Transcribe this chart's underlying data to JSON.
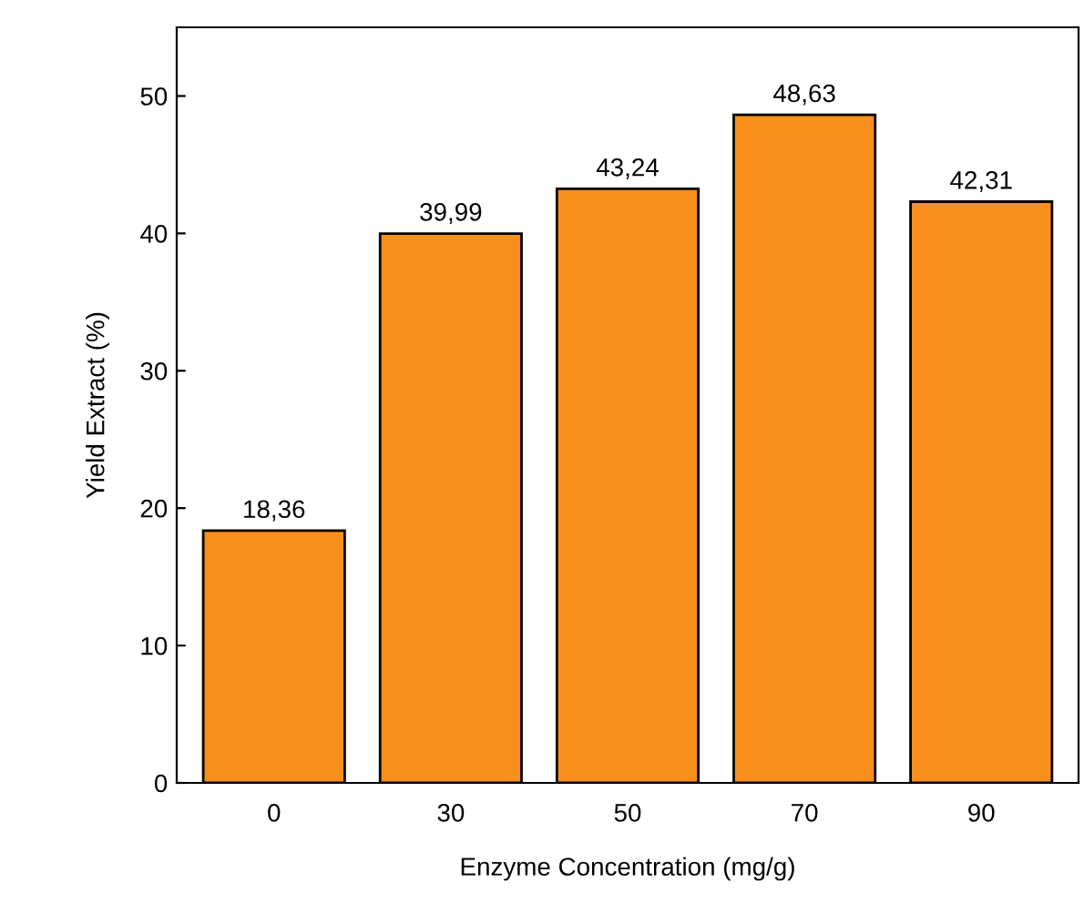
{
  "chart_data": {
    "type": "bar",
    "xlabel": "Enzyme Concentration (mg/g)",
    "ylabel": "Yield Extract (%)",
    "categories": [
      "0",
      "30",
      "50",
      "70",
      "90"
    ],
    "values": [
      18.36,
      39.99,
      43.24,
      48.63,
      42.31
    ],
    "value_labels": [
      "18,36",
      "39,99",
      "43,24",
      "48,63",
      "42,31"
    ],
    "color": "#f98f1d",
    "ylim": [
      0,
      55
    ],
    "yticks": [
      0,
      10,
      20,
      30,
      40,
      50
    ],
    "grid": false
  }
}
